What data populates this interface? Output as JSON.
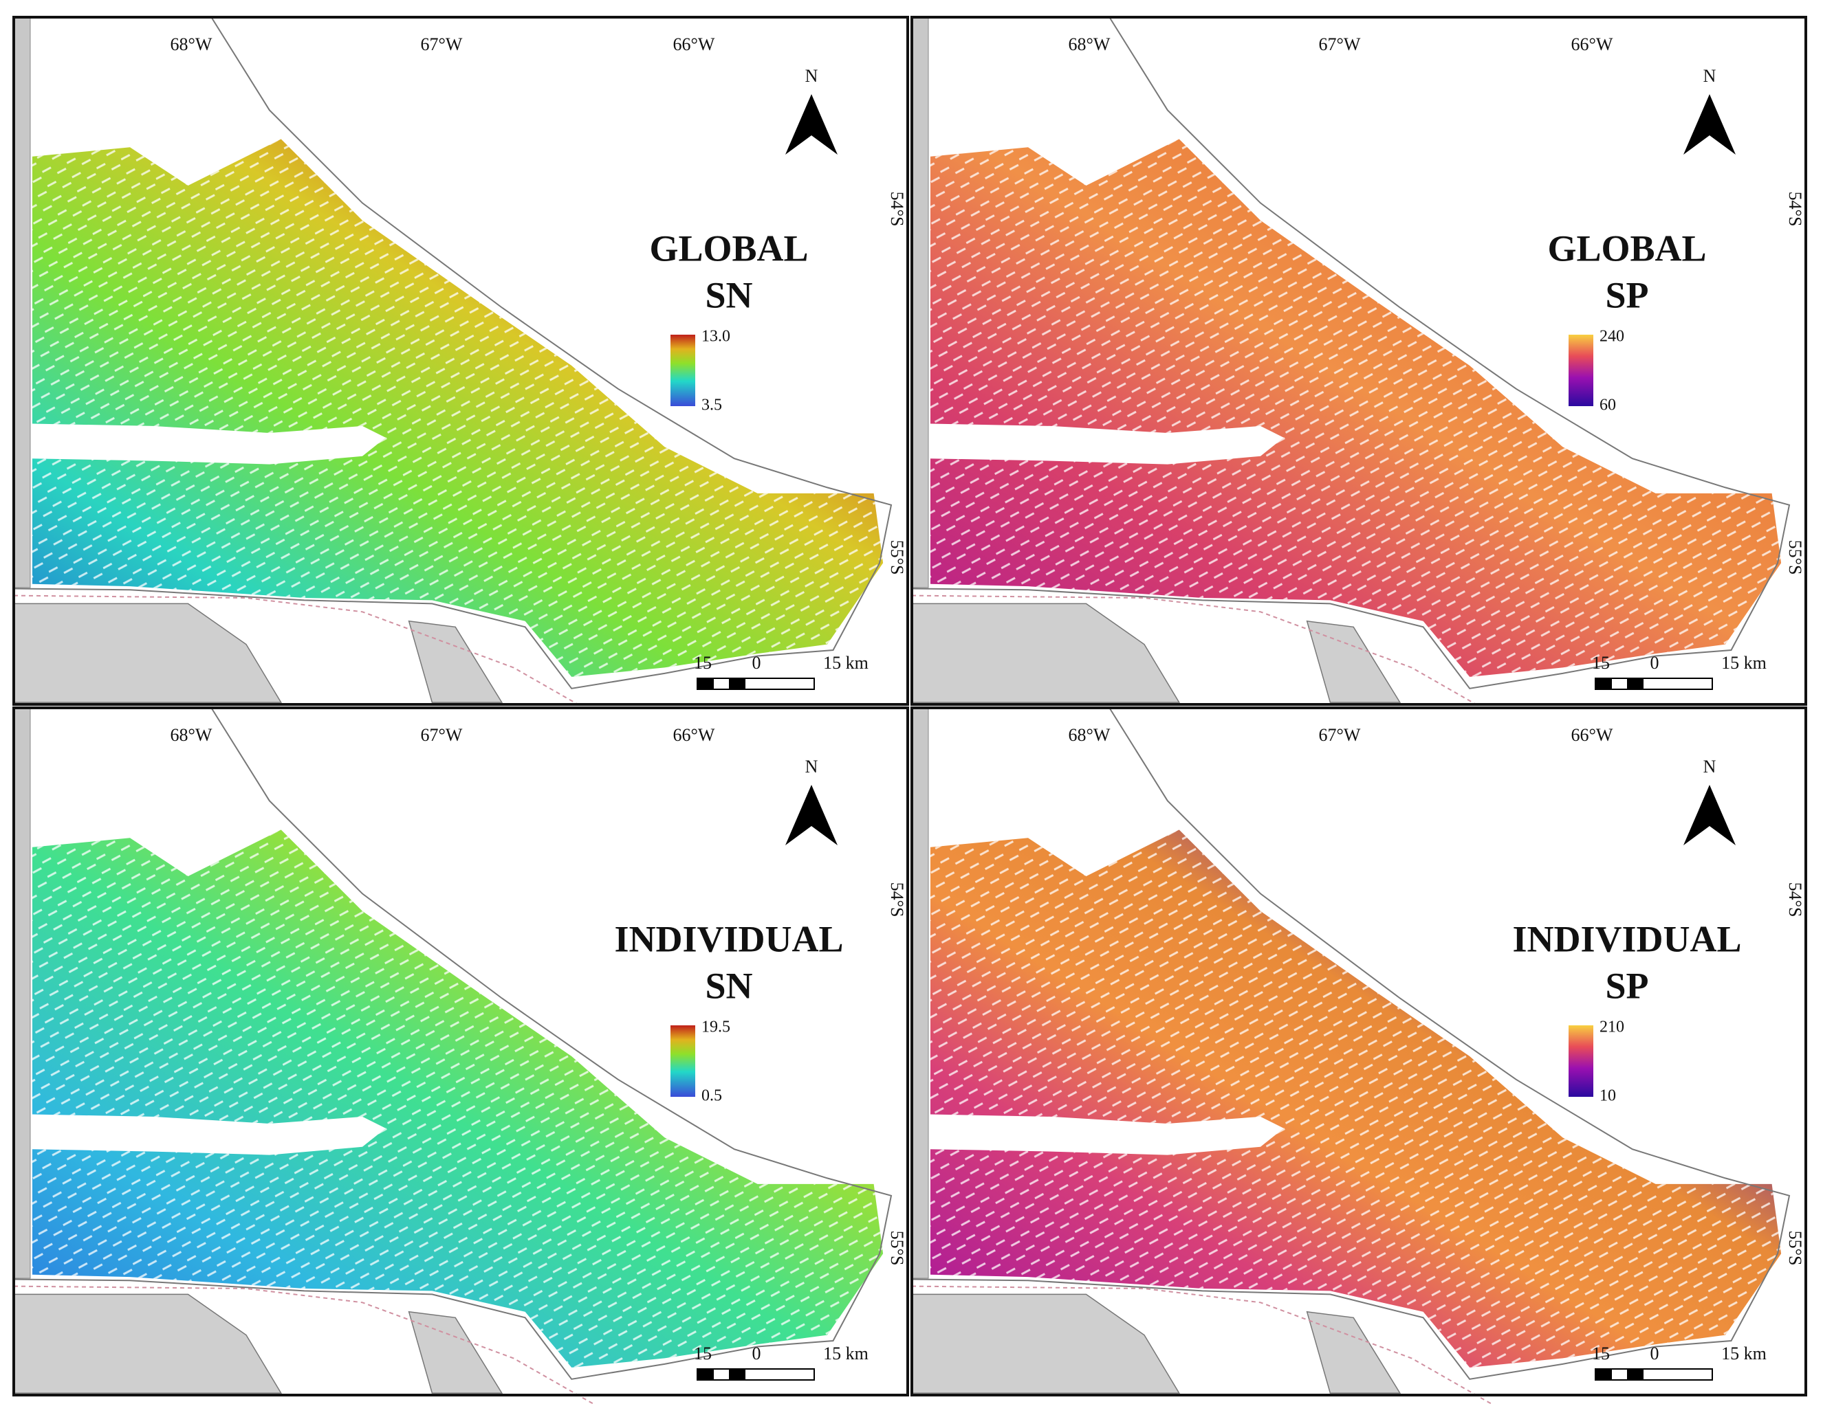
{
  "panels": [
    {
      "title": [
        "GLOBAL",
        "SN"
      ],
      "legend": {
        "max": "13.0",
        "min": "3.5"
      },
      "longitudes": [
        "68°W",
        "67°W",
        "66°W"
      ],
      "latitudes": [
        "54°S",
        "55°S"
      ],
      "north": "N",
      "scale": [
        "15",
        "0",
        "15 km"
      ]
    },
    {
      "title": [
        "GLOBAL",
        "SP"
      ],
      "legend": {
        "max": "240",
        "min": "60"
      },
      "longitudes": [
        "68°W",
        "67°W",
        "66°W"
      ],
      "latitudes": [
        "54°S",
        "55°S"
      ],
      "north": "N",
      "scale": [
        "15",
        "0",
        "15 km"
      ]
    },
    {
      "title": [
        "INDIVIDUAL",
        "SN"
      ],
      "legend": {
        "max": "19.5",
        "min": "0.5"
      },
      "longitudes": [
        "68°W",
        "67°W",
        "66°W"
      ],
      "latitudes": [
        "54°S",
        "55°S"
      ],
      "north": "N",
      "scale": [
        "15",
        "0",
        "15 km"
      ]
    },
    {
      "title": [
        "INDIVIDUAL",
        "SP"
      ],
      "legend": {
        "max": "210",
        "min": "10"
      },
      "longitudes": [
        "68°W",
        "67°W",
        "66°W"
      ],
      "latitudes": [
        "54°S",
        "55°S"
      ],
      "north": "N",
      "scale": [
        "15",
        "0",
        "15 km"
      ]
    }
  ]
}
